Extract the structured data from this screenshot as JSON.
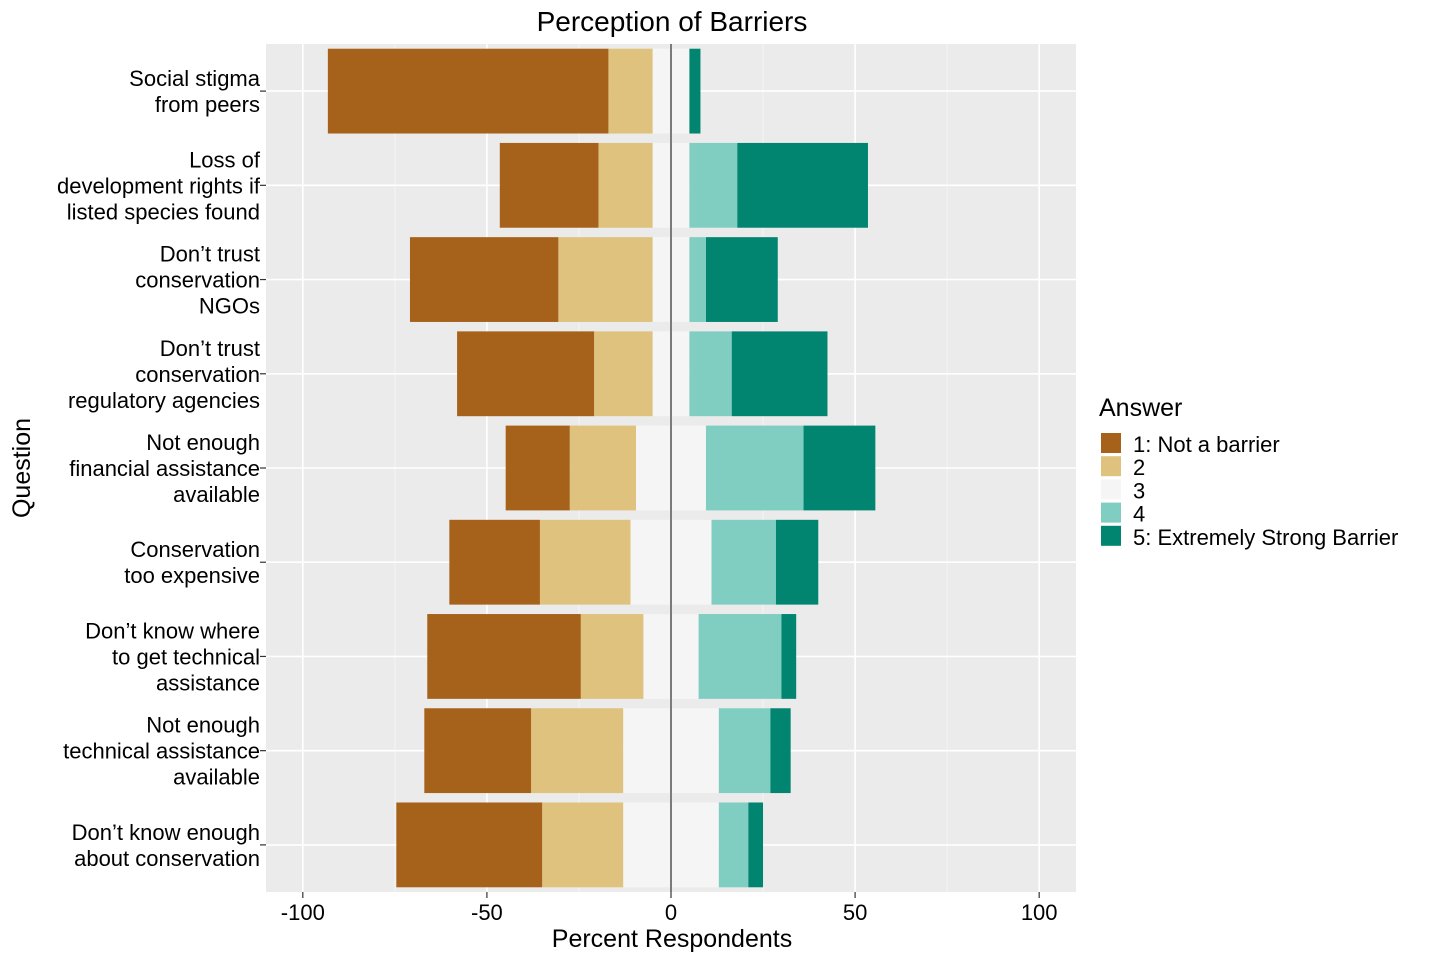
{
  "chart_data": {
    "type": "bar",
    "orientation": "horizontal",
    "stacked": "diverging",
    "title": "Perception of Barriers",
    "xlabel": "Percent Respondents",
    "ylabel": "Question",
    "xlim": [
      -110,
      110
    ],
    "xticks": [
      -100,
      -50,
      0,
      50,
      100
    ],
    "xtick_labels": [
      "-100",
      "-50",
      "0",
      "50",
      "100"
    ],
    "grid": true,
    "legend_title": "Answer",
    "legend_position": "right",
    "categories": [
      [
        "Social stigma",
        "from peers"
      ],
      [
        "Loss of",
        "development rights if",
        "listed species found"
      ],
      [
        "Don’t trust",
        "conservation",
        "NGOs"
      ],
      [
        "Don’t trust",
        "conservation",
        "regulatory agencies"
      ],
      [
        "Not enough",
        "financial assistance",
        "available"
      ],
      [
        "Conservation",
        "too expensive"
      ],
      [
        "Don’t know where",
        "to get technical",
        "assistance"
      ],
      [
        "Not enough",
        "technical assistance",
        "available"
      ],
      [
        "Don’t know enough",
        "about conservation"
      ]
    ],
    "series": [
      {
        "name": "1: Not a barrier",
        "color": "#A6611A",
        "side": "negative",
        "values": [
          76.2,
          26.8,
          40.3,
          37.2,
          17.4,
          24.6,
          41.7,
          29.0,
          39.6
        ]
      },
      {
        "name": "2",
        "color": "#DFC27D",
        "side": "negative",
        "values": [
          12.0,
          14.7,
          25.6,
          15.9,
          18.0,
          24.6,
          17.0,
          25.0,
          22.0
        ]
      },
      {
        "name": "3",
        "color": "#F5F5F5",
        "side": "split",
        "values": [
          10.0,
          10.0,
          10.0,
          10.0,
          19.0,
          22.0,
          15.0,
          26.0,
          26.0
        ]
      },
      {
        "name": "4",
        "color": "#80CDC1",
        "side": "positive",
        "values": [
          0.0,
          13.0,
          4.5,
          11.5,
          26.5,
          17.5,
          22.5,
          14.0,
          8.0
        ]
      },
      {
        "name": "5: Extremely Strong Barrier",
        "color": "#018571",
        "side": "positive",
        "values": [
          3.0,
          35.5,
          19.5,
          26.0,
          19.5,
          11.5,
          4.0,
          5.5,
          4.0
        ]
      }
    ]
  }
}
